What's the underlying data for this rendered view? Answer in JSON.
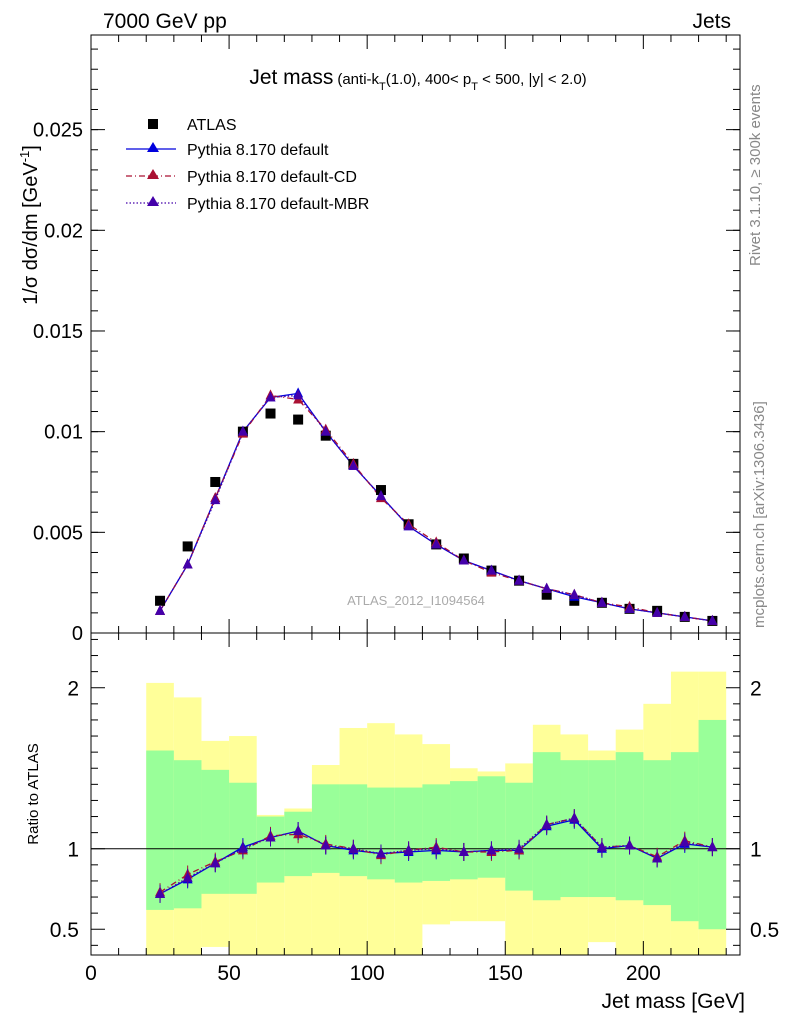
{
  "header": {
    "left": "7000 GeV pp",
    "right": "Jets"
  },
  "side_labels": {
    "rivet": "Rivet 3.1.10, ≥ 300k events",
    "mcplots": "mcplots.cern.ch [arXiv:1306.3436]"
  },
  "chart_data": [
    {
      "type": "scatter",
      "panel": "main",
      "title_main": "Jet mass",
      "title_detail": "(anti-k",
      "title_sub_T": "T",
      "title_detail2": "(1.0), 400< p",
      "title_detail3": " < 500, |y| < 2.0)",
      "ylabel": "1/σ dσ/dm [GeV",
      "ylabel_sup": "-1",
      "ylabel_end": "]",
      "watermark": "ATLAS_2012_I1094564",
      "ylim": [
        0,
        0.0297
      ],
      "xlim": [
        0,
        235
      ],
      "yticks": [
        0,
        0.005,
        0.01,
        0.015,
        0.02,
        0.025
      ],
      "ytick_labels": [
        "0",
        "0.005",
        "0.01",
        "0.015",
        "0.02",
        "0.025"
      ],
      "x": [
        25,
        35,
        45,
        55,
        65,
        75,
        85,
        95,
        105,
        115,
        125,
        135,
        145,
        155,
        165,
        175,
        185,
        195,
        205,
        215,
        225
      ],
      "series": [
        {
          "name": "ATLAS",
          "style": "marker-square",
          "color": "#000000",
          "values": [
            0.0016,
            0.0043,
            0.0075,
            0.01,
            0.0109,
            0.0106,
            0.0098,
            0.0084,
            0.0071,
            0.0054,
            0.0044,
            0.0037,
            0.0031,
            0.0026,
            0.0019,
            0.0016,
            0.0015,
            0.0012,
            0.0011,
            0.0008,
            0.0006
          ]
        },
        {
          "name": "Pythia 8.170 default",
          "style": "solid",
          "color": "#0000dd",
          "values": [
            0.0011,
            0.0034,
            0.0067,
            0.01,
            0.0117,
            0.0119,
            0.01,
            0.0083,
            0.0068,
            0.0053,
            0.0044,
            0.0036,
            0.0031,
            0.0026,
            0.0022,
            0.0018,
            0.0015,
            0.0012,
            0.001,
            0.0008,
            0.0006
          ]
        },
        {
          "name": "Pythia 8.170 default-CD",
          "style": "dashdot",
          "color": "#aa1133",
          "values": [
            0.0011,
            0.0034,
            0.0067,
            0.0099,
            0.0118,
            0.0116,
            0.0101,
            0.0084,
            0.0067,
            0.0054,
            0.0045,
            0.0036,
            0.003,
            0.0026,
            0.0022,
            0.0019,
            0.0015,
            0.0013,
            0.001,
            0.0008,
            0.0006
          ]
        },
        {
          "name": "Pythia 8.170 default-MBR",
          "style": "dotted",
          "color": "#4400aa",
          "values": [
            0.0011,
            0.0034,
            0.0066,
            0.01,
            0.0117,
            0.0118,
            0.01,
            0.0083,
            0.0068,
            0.0053,
            0.0044,
            0.0036,
            0.0031,
            0.0026,
            0.0022,
            0.0019,
            0.0015,
            0.0012,
            0.001,
            0.0008,
            0.0006
          ]
        }
      ]
    },
    {
      "type": "scatter",
      "panel": "ratio",
      "ylabel": "Ratio to ATLAS",
      "xlabel": "Jet mass [GeV]",
      "ylim": [
        0.34,
        2.34
      ],
      "xlim": [
        0,
        235
      ],
      "xticks": [
        0,
        50,
        100,
        150,
        200
      ],
      "xtick_labels": [
        "0",
        "50",
        "100",
        "150",
        "200"
      ],
      "yticks": [
        0.5,
        1,
        2
      ],
      "ytick_labels": [
        "0.5",
        "1",
        "2"
      ],
      "bin_edges": [
        20,
        30,
        40,
        50,
        60,
        70,
        80,
        90,
        100,
        110,
        120,
        130,
        140,
        150,
        160,
        170,
        180,
        190,
        200,
        210,
        220,
        230
      ],
      "band_outer": {
        "color": "#ffff99",
        "low": [
          0.32,
          0.32,
          0.39,
          0.32,
          0.32,
          0.32,
          0.32,
          0.32,
          0.32,
          0.32,
          0.53,
          0.55,
          0.55,
          0.32,
          0.32,
          0.32,
          0.42,
          0.32,
          0.32,
          0.32,
          0.32
        ],
        "high": [
          2.03,
          1.94,
          1.67,
          1.7,
          1.21,
          1.25,
          1.52,
          1.75,
          1.78,
          1.71,
          1.65,
          1.5,
          1.48,
          1.53,
          1.77,
          1.71,
          1.61,
          1.74,
          1.9,
          2.1,
          2.1
        ]
      },
      "band_inner": {
        "color": "#99ff99",
        "low": [
          0.62,
          0.63,
          0.72,
          0.72,
          0.79,
          0.83,
          0.85,
          0.83,
          0.81,
          0.79,
          0.8,
          0.81,
          0.82,
          0.74,
          0.68,
          0.7,
          0.7,
          0.68,
          0.65,
          0.55,
          0.5
        ],
        "high": [
          1.61,
          1.55,
          1.49,
          1.41,
          1.2,
          1.23,
          1.4,
          1.4,
          1.38,
          1.38,
          1.4,
          1.42,
          1.45,
          1.41,
          1.6,
          1.55,
          1.55,
          1.6,
          1.55,
          1.6,
          1.8
        ]
      },
      "x": [
        25,
        35,
        45,
        55,
        65,
        75,
        85,
        95,
        105,
        115,
        125,
        135,
        145,
        155,
        165,
        175,
        185,
        195,
        205,
        215,
        225
      ],
      "series": [
        {
          "name": "Pythia 8.170 default",
          "color": "#0000dd",
          "style": "solid",
          "values": [
            0.72,
            0.81,
            0.91,
            1.01,
            1.07,
            1.11,
            1.02,
            0.99,
            0.97,
            0.98,
            0.99,
            0.98,
            0.99,
            0.99,
            1.14,
            1.18,
            1.0,
            1.02,
            0.94,
            1.03,
            1.01
          ]
        },
        {
          "name": "Pythia 8.170 default-CD",
          "color": "#aa1133",
          "style": "dashdot",
          "values": [
            0.73,
            0.84,
            0.92,
            0.99,
            1.08,
            1.09,
            1.03,
            1.0,
            0.96,
            0.99,
            1.01,
            0.98,
            0.98,
            0.99,
            1.15,
            1.19,
            1.01,
            1.02,
            0.95,
            1.05,
            1.01
          ]
        },
        {
          "name": "Pythia 8.170 default-MBR",
          "color": "#4400aa",
          "style": "dotted",
          "values": [
            0.72,
            0.82,
            0.91,
            1.0,
            1.07,
            1.11,
            1.02,
            1.0,
            0.97,
            0.99,
            1.0,
            0.98,
            0.99,
            1.0,
            1.15,
            1.19,
            1.01,
            1.02,
            0.94,
            1.04,
            1.01
          ]
        }
      ]
    }
  ]
}
